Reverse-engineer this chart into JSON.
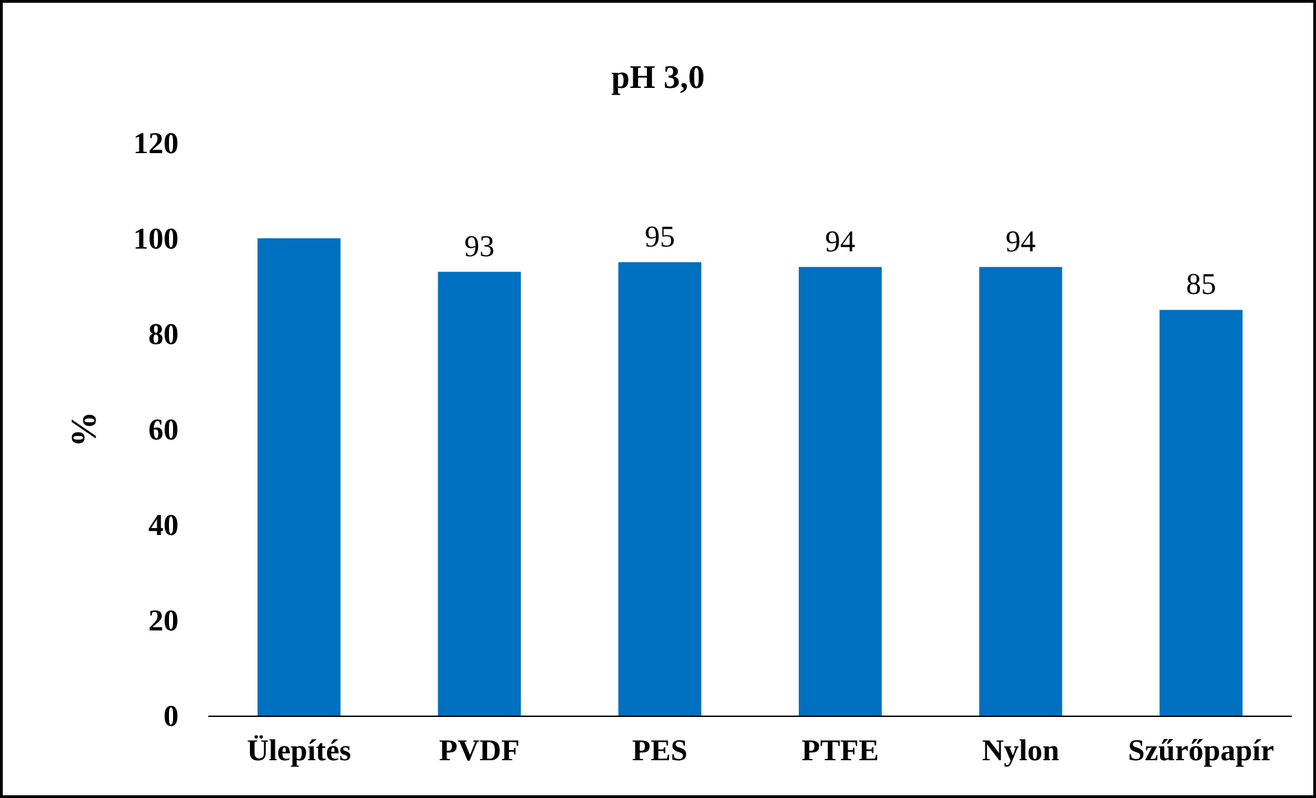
{
  "chart_data": {
    "type": "bar",
    "title": "pH 3,0",
    "ylabel": "%",
    "categories": [
      "Ülepítés",
      "PVDF",
      "PES",
      "PTFE",
      "Nylon",
      "Szűrőpapír"
    ],
    "values": [
      100,
      93,
      95,
      94,
      94,
      85
    ],
    "value_labels": [
      null,
      "93",
      "95",
      "94",
      "94",
      "85"
    ],
    "color": "#0070c0",
    "ylim": [
      0,
      120
    ],
    "yticks": [
      0,
      20,
      40,
      60,
      80,
      100,
      120
    ],
    "grid": false
  }
}
